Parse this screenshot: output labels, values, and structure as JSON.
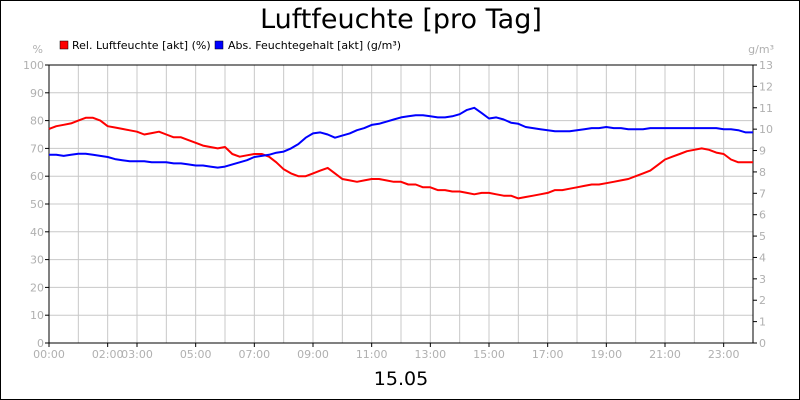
{
  "chart_data": {
    "type": "line",
    "title": "Luftfeuchte [pro Tag]",
    "date_label": "15.05",
    "x_ticks": [
      "00:00",
      "02:00",
      "03:00",
      "05:00",
      "07:00",
      "09:00",
      "11:00",
      "13:00",
      "15:00",
      "17:00",
      "19:00",
      "21:00",
      "23:00"
    ],
    "y_left": {
      "unit": "%",
      "range": [
        0,
        100
      ],
      "ticks": [
        "0",
        "10",
        "20",
        "30",
        "40",
        "50",
        "60",
        "70",
        "80",
        "90",
        "100"
      ]
    },
    "y_right": {
      "unit": "g/m³",
      "range": [
        0,
        13
      ],
      "ticks": [
        "0",
        "1",
        "2",
        "3",
        "4",
        "5",
        "6",
        "7",
        "8",
        "9",
        "10",
        "11",
        "12",
        "13"
      ]
    },
    "grid": true,
    "legend_position": "top-left",
    "series": [
      {
        "name": "Rel. Luftfeuchte [akt] (%)",
        "color": "#ff0000",
        "axis": "left",
        "x": [
          0,
          0.25,
          0.5,
          0.75,
          1,
          1.25,
          1.5,
          1.75,
          2,
          2.25,
          2.5,
          2.75,
          3,
          3.25,
          3.5,
          3.75,
          4,
          4.25,
          4.5,
          4.75,
          5,
          5.25,
          5.5,
          5.75,
          6,
          6.25,
          6.5,
          6.75,
          7,
          7.25,
          7.5,
          7.75,
          8,
          8.25,
          8.5,
          8.75,
          9,
          9.25,
          9.5,
          9.75,
          10,
          10.25,
          10.5,
          10.75,
          11,
          11.25,
          11.5,
          11.75,
          12,
          12.25,
          12.5,
          12.75,
          13,
          13.25,
          13.5,
          13.75,
          14,
          14.25,
          14.5,
          14.75,
          15,
          15.25,
          15.5,
          15.75,
          16,
          16.25,
          16.5,
          16.75,
          17,
          17.25,
          17.5,
          17.75,
          18,
          18.25,
          18.5,
          18.75,
          19,
          19.25,
          19.5,
          19.75,
          20,
          20.25,
          20.5,
          20.75,
          21,
          21.25,
          21.5,
          21.75,
          22,
          22.25,
          22.5,
          22.75,
          23,
          23.25,
          23.5,
          23.75,
          24
        ],
        "values": [
          77,
          78,
          78.5,
          79,
          80,
          81,
          81,
          80,
          78,
          77.5,
          77,
          76.5,
          76,
          75,
          75.5,
          76,
          75,
          74,
          74,
          73,
          72,
          71,
          70.5,
          70,
          70.5,
          68,
          67,
          67.5,
          68,
          68,
          67,
          65,
          62.5,
          61,
          60,
          60,
          61,
          62,
          63,
          61,
          59,
          58.5,
          58,
          58.5,
          59,
          59,
          58.5,
          58,
          58,
          57,
          57,
          56,
          56,
          55,
          55,
          54.5,
          54.5,
          54,
          53.5,
          54,
          54,
          53.5,
          53,
          53,
          52,
          52.5,
          53,
          53.5,
          54,
          55,
          55,
          55.5,
          56,
          56.5,
          57,
          57,
          57.5,
          58,
          58.5,
          59,
          60,
          61,
          62,
          64,
          66,
          67,
          68,
          69,
          69.5,
          70,
          69.5,
          68.5,
          68,
          66,
          65,
          65,
          65
        ]
      },
      {
        "name": "Abs. Feuchtegehalt [akt] (g/m³)",
        "color": "#0000ff",
        "axis": "right",
        "x": [
          0,
          0.25,
          0.5,
          0.75,
          1,
          1.25,
          1.5,
          1.75,
          2,
          2.25,
          2.5,
          2.75,
          3,
          3.25,
          3.5,
          3.75,
          4,
          4.25,
          4.5,
          4.75,
          5,
          5.25,
          5.5,
          5.75,
          6,
          6.25,
          6.5,
          6.75,
          7,
          7.25,
          7.5,
          7.75,
          8,
          8.25,
          8.5,
          8.75,
          9,
          9.25,
          9.5,
          9.75,
          10,
          10.25,
          10.5,
          10.75,
          11,
          11.25,
          11.5,
          11.75,
          12,
          12.25,
          12.5,
          12.75,
          13,
          13.25,
          13.5,
          13.75,
          14,
          14.25,
          14.5,
          14.75,
          15,
          15.25,
          15.5,
          15.75,
          16,
          16.25,
          16.5,
          16.75,
          17,
          17.25,
          17.5,
          17.75,
          18,
          18.25,
          18.5,
          18.75,
          19,
          19.25,
          19.5,
          19.75,
          20,
          20.25,
          20.5,
          20.75,
          21,
          21.25,
          21.5,
          21.75,
          22,
          22.25,
          22.5,
          22.75,
          23,
          23.25,
          23.5,
          23.75,
          24
        ],
        "values": [
          8.8,
          8.8,
          8.75,
          8.8,
          8.85,
          8.85,
          8.8,
          8.75,
          8.7,
          8.6,
          8.55,
          8.5,
          8.5,
          8.5,
          8.45,
          8.45,
          8.45,
          8.4,
          8.4,
          8.35,
          8.3,
          8.3,
          8.25,
          8.2,
          8.25,
          8.35,
          8.45,
          8.55,
          8.7,
          8.75,
          8.8,
          8.9,
          8.95,
          9.1,
          9.3,
          9.6,
          9.8,
          9.85,
          9.75,
          9.6,
          9.7,
          9.8,
          9.95,
          10.05,
          10.2,
          10.25,
          10.35,
          10.45,
          10.55,
          10.6,
          10.65,
          10.65,
          10.6,
          10.55,
          10.55,
          10.6,
          10.7,
          10.9,
          11,
          10.75,
          10.5,
          10.55,
          10.45,
          10.3,
          10.25,
          10.1,
          10.05,
          10,
          9.95,
          9.9,
          9.9,
          9.9,
          9.95,
          10,
          10.05,
          10.05,
          10.1,
          10.05,
          10.05,
          10,
          10,
          10,
          10.05,
          10.05,
          10.05,
          10.05,
          10.05,
          10.05,
          10.05,
          10.05,
          10.05,
          10.05,
          10,
          10,
          9.95,
          9.85,
          9.85
        ]
      }
    ]
  }
}
